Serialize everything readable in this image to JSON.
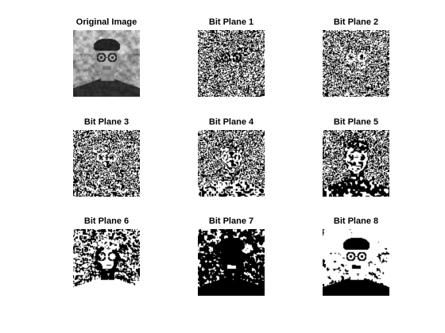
{
  "figure": {
    "panels": [
      {
        "title": "Original Image",
        "kind": "grayscale-portrait"
      },
      {
        "title": "Bit Plane 1",
        "kind": "bit-plane",
        "plane": 1
      },
      {
        "title": "Bit Plane 2",
        "kind": "bit-plane",
        "plane": 2
      },
      {
        "title": "Bit Plane 3",
        "kind": "bit-plane",
        "plane": 3
      },
      {
        "title": "Bit Plane 4",
        "kind": "bit-plane",
        "plane": 4
      },
      {
        "title": "Bit Plane 5",
        "kind": "bit-plane",
        "plane": 5
      },
      {
        "title": "Bit Plane 6",
        "kind": "bit-plane",
        "plane": 6
      },
      {
        "title": "Bit Plane 7",
        "kind": "bit-plane",
        "plane": 7
      },
      {
        "title": "Bit Plane 8",
        "kind": "bit-plane",
        "plane": 8
      }
    ],
    "colors": {
      "background": "#ffffff",
      "title_text": "#000000",
      "bit_on": "#ffffff",
      "bit_off": "#000000"
    }
  }
}
